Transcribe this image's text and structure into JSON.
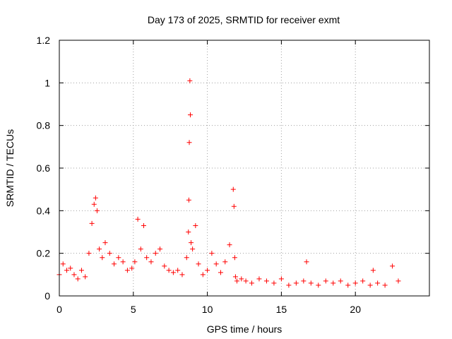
{
  "chart_data": {
    "type": "scatter",
    "title": "Day 173 of 2025, SRMTID for receiver exmt",
    "xlabel": "GPS time / hours",
    "ylabel": "SRMTID / TECUs",
    "xlim": [
      0,
      25
    ],
    "ylim": [
      0,
      1.2
    ],
    "grid": true,
    "marker": "+",
    "x_ticks": [
      0,
      5,
      10,
      15,
      20
    ],
    "x_tick_labels": [
      "0",
      "5",
      "10",
      "15",
      "20"
    ],
    "y_ticks": [
      0,
      0.2,
      0.4,
      0.6,
      0.8,
      1.0,
      1.2
    ],
    "y_tick_labels": [
      "0",
      "0.2",
      "0.4",
      "0.6",
      "0.8",
      "1",
      "1.2"
    ],
    "series": [
      {
        "name": "SRMTID",
        "color": "#ff0000",
        "x": [
          0.0,
          0.25,
          0.5,
          0.75,
          1.0,
          1.25,
          1.5,
          1.75,
          2.0,
          2.2,
          2.35,
          2.45,
          2.55,
          2.7,
          2.9,
          3.1,
          3.4,
          3.7,
          4.0,
          4.3,
          4.6,
          4.9,
          5.1,
          5.3,
          5.5,
          5.7,
          5.9,
          6.2,
          6.5,
          6.8,
          7.1,
          7.4,
          7.7,
          8.0,
          8.3,
          8.6,
          8.72,
          8.75,
          8.78,
          8.82,
          8.85,
          8.9,
          9.0,
          9.2,
          9.4,
          9.7,
          10.0,
          10.3,
          10.6,
          10.9,
          11.2,
          11.5,
          11.75,
          11.8,
          11.85,
          11.9,
          12.0,
          12.3,
          12.6,
          13.0,
          13.5,
          14.0,
          14.5,
          15.0,
          15.5,
          16.0,
          16.5,
          16.7,
          17.0,
          17.5,
          18.0,
          18.5,
          19.0,
          19.5,
          20.0,
          20.5,
          21.0,
          21.2,
          21.5,
          22.0,
          22.5,
          22.9
        ],
        "y": [
          0.1,
          0.15,
          0.12,
          0.13,
          0.1,
          0.08,
          0.12,
          0.09,
          0.2,
          0.34,
          0.43,
          0.46,
          0.4,
          0.22,
          0.18,
          0.25,
          0.2,
          0.15,
          0.18,
          0.16,
          0.12,
          0.13,
          0.16,
          0.36,
          0.22,
          0.33,
          0.18,
          0.16,
          0.2,
          0.22,
          0.14,
          0.12,
          0.11,
          0.12,
          0.1,
          0.18,
          0.3,
          0.45,
          0.72,
          1.01,
          0.85,
          0.25,
          0.22,
          0.33,
          0.15,
          0.1,
          0.12,
          0.2,
          0.15,
          0.11,
          0.16,
          0.24,
          0.5,
          0.42,
          0.18,
          0.09,
          0.07,
          0.08,
          0.07,
          0.06,
          0.08,
          0.07,
          0.06,
          0.08,
          0.05,
          0.06,
          0.07,
          0.16,
          0.06,
          0.05,
          0.07,
          0.06,
          0.07,
          0.05,
          0.06,
          0.07,
          0.05,
          0.12,
          0.06,
          0.05,
          0.14,
          0.07
        ]
      }
    ]
  }
}
